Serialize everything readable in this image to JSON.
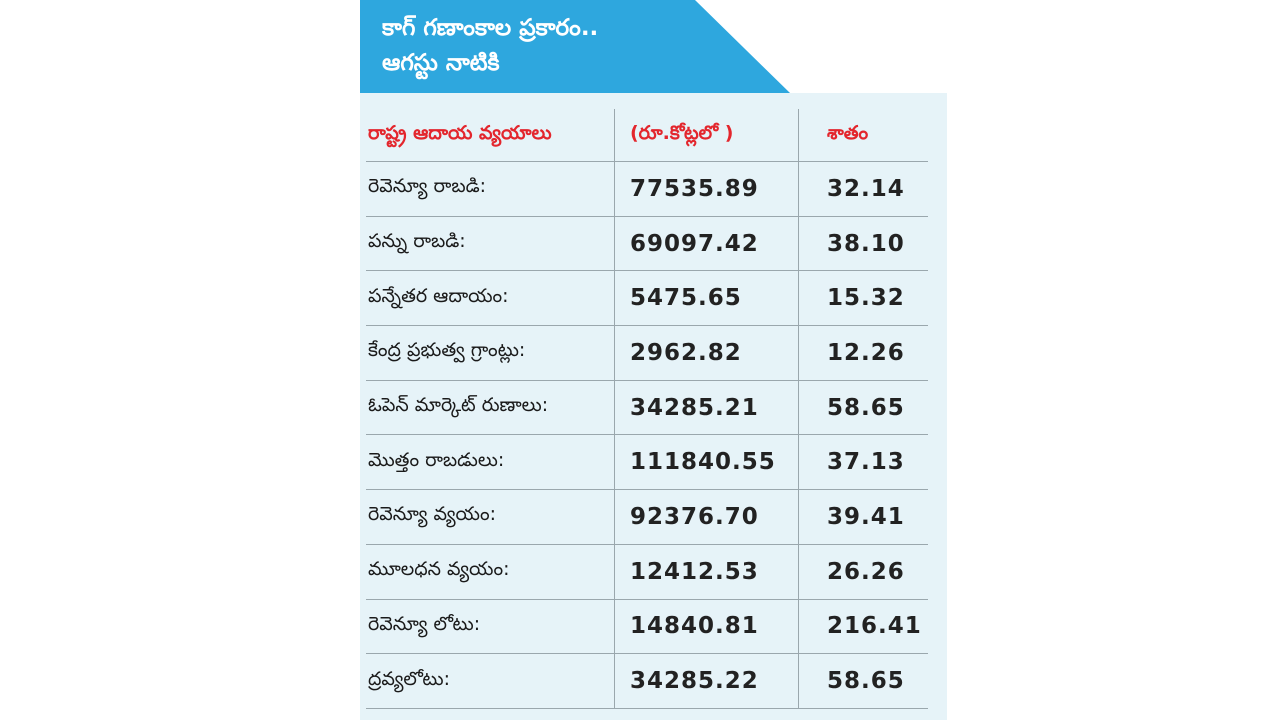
{
  "banner": {
    "line1": "కాగ్ గణాంకాల ప్రకారం..",
    "line2": "ఆగస్టు నాటికి"
  },
  "colors": {
    "banner": "#2ea7de",
    "header_text": "#e3262d",
    "card_bg": "#e6f3f8"
  },
  "table": {
    "headers": [
      "రాష్ట్ర ఆదాయ వ్యయాలు",
      "(రూ.కోట్లలో )",
      "శాతం"
    ],
    "rows": [
      [
        "రెవెన్యూ రాబడి:",
        "77535.89",
        "32.14"
      ],
      [
        "పన్ను రాబడి:",
        "69097.42",
        "38.10"
      ],
      [
        "పన్నేతర ఆదాయం:",
        "5475.65",
        "15.32"
      ],
      [
        "కేంద్ర ప్రభుత్వ గ్రాంట్లు:",
        "2962.82",
        "12.26"
      ],
      [
        "ఓపెన్ మార్కెట్ రుణాలు:",
        "34285.21",
        "58.65"
      ],
      [
        "మొత్తం రాబడులు:",
        "111840.55",
        "37.13"
      ],
      [
        "రెవెన్యూ వ్యయం:",
        "92376.70",
        "39.41"
      ],
      [
        "మూలధన వ్యయం:",
        "12412.53",
        "26.26"
      ],
      [
        "రెవెన్యూ లోటు:",
        "14840.81",
        "216.41"
      ],
      [
        "ద్రవ్యలోటు:",
        "34285.22",
        "58.65"
      ]
    ]
  }
}
